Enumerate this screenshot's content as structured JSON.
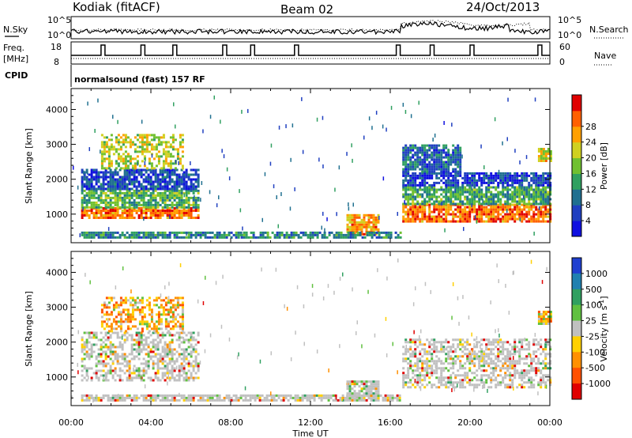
{
  "header": {
    "station": "Kodiak (fitACF)",
    "beam": "Beam 02",
    "date": "24/Oct/2013"
  },
  "ancillary": {
    "nsky_label": "N.Sky",
    "nsearch_label": "N.Search",
    "nsky_ticks": [
      "10^5",
      "10^0"
    ],
    "nsearch_ticks": [
      "10^5",
      "10^0"
    ],
    "freq_label_1": "Freq.",
    "freq_label_2": "[MHz]",
    "freq_ticks": [
      "18",
      "8"
    ],
    "nave_label": "Nave",
    "nave_ticks": [
      "60",
      "0"
    ],
    "cpid_label": "CPID",
    "cpid_value": "normalsound (fast) 157 RF"
  },
  "chart_data": [
    {
      "type": "heatmap",
      "panel": "power",
      "ylabel": "Slant Range [km]",
      "xlabel": "Time UT",
      "x_ticks": [
        "00:00",
        "04:00",
        "08:00",
        "12:00",
        "16:00",
        "20:00",
        "00:00"
      ],
      "xlim_hours": [
        0,
        24
      ],
      "y_ticks": [
        "1000",
        "2000",
        "3000",
        "4000"
      ],
      "ylim": [
        180,
        4600
      ],
      "colorbar": {
        "label": "Power [dB]",
        "ticks": [
          "4",
          "8",
          "12",
          "16",
          "20",
          "24",
          "28"
        ],
        "range": [
          0,
          32
        ],
        "colors": [
          "#1010e0",
          "#2040c0",
          "#207090",
          "#30a060",
          "#70c030",
          "#d0d020",
          "#ffa000",
          "#ff6000",
          "#e00000"
        ]
      },
      "echo_regions": [
        {
          "t0": 0.5,
          "t1": 6.4,
          "r0": 900,
          "r1": 1200,
          "level": 26
        },
        {
          "t0": 0.5,
          "t1": 6.4,
          "r0": 1200,
          "r1": 1700,
          "level": 14
        },
        {
          "t0": 0.5,
          "t1": 6.4,
          "r0": 1700,
          "r1": 2300,
          "level": 6
        },
        {
          "t0": 1.5,
          "t1": 5.6,
          "r0": 2300,
          "r1": 3300,
          "level": 18
        },
        {
          "t0": 0.5,
          "t1": 8.5,
          "r0": 300,
          "r1": 500,
          "level": 10
        },
        {
          "t0": 13.8,
          "t1": 15.4,
          "r0": 400,
          "r1": 1000,
          "level": 24
        },
        {
          "t0": 8.5,
          "t1": 16.5,
          "r0": 300,
          "r1": 500,
          "level": 10
        },
        {
          "t0": 16.6,
          "t1": 24.0,
          "r0": 800,
          "r1": 1300,
          "level": 26
        },
        {
          "t0": 16.6,
          "t1": 24.0,
          "r0": 1300,
          "r1": 1800,
          "level": 13
        },
        {
          "t0": 16.6,
          "t1": 24.0,
          "r0": 1800,
          "r1": 2200,
          "level": 5
        },
        {
          "t0": 16.6,
          "t1": 19.5,
          "r0": 2200,
          "r1": 3000,
          "level": 8
        },
        {
          "t0": 23.4,
          "t1": 24.0,
          "r0": 2500,
          "r1": 2900,
          "level": 20
        }
      ]
    },
    {
      "type": "heatmap",
      "panel": "velocity",
      "ylabel": "Slant Range [km]",
      "xlabel": "Time UT",
      "x_ticks": [
        "00:00",
        "04:00",
        "08:00",
        "12:00",
        "16:00",
        "20:00",
        "00:00"
      ],
      "xlim_hours": [
        0,
        24
      ],
      "y_ticks": [
        "1000",
        "2000",
        "3000",
        "4000"
      ],
      "ylim": [
        180,
        4600
      ],
      "colorbar": {
        "label": "Velocity [m s^-1]",
        "ticks": [
          "1000",
          "500",
          "100",
          "25",
          "-25",
          "-100",
          "-500",
          "-1000"
        ],
        "colors": [
          "#2040d0",
          "#2080b0",
          "#30a060",
          "#60c040",
          "#c0c0c0",
          "#ffd000",
          "#ff9000",
          "#ff5000",
          "#e00000"
        ]
      },
      "echo_regions": [
        {
          "t0": 0.5,
          "t1": 6.4,
          "r0": 900,
          "r1": 2300,
          "level": 0
        },
        {
          "t0": 1.5,
          "t1": 5.6,
          "r0": 2300,
          "r1": 3300,
          "level": -150
        },
        {
          "t0": 0.5,
          "t1": 16.5,
          "r0": 300,
          "r1": 500,
          "level": 0
        },
        {
          "t0": 13.8,
          "t1": 15.4,
          "r0": 400,
          "r1": 900,
          "level": 0
        },
        {
          "t0": 16.6,
          "t1": 24.0,
          "r0": 700,
          "r1": 2100,
          "level": 0
        },
        {
          "t0": 23.4,
          "t1": 24.0,
          "r0": 2500,
          "r1": 2900,
          "level": -300
        }
      ]
    }
  ]
}
